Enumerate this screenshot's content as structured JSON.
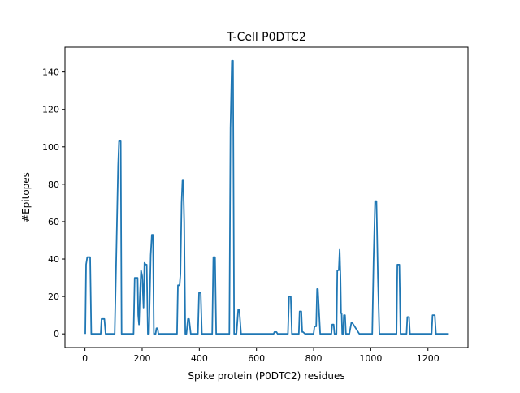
{
  "chart_data": {
    "type": "line",
    "title": "T-Cell P0DTC2",
    "xlabel": "Spike protein (P0DTC2) residues",
    "ylabel": "#Epitopes",
    "xlim": [
      -70,
      1340
    ],
    "ylim": [
      -7.3,
      153.3
    ],
    "xticks": [
      0,
      200,
      400,
      600,
      800,
      1000,
      1200
    ],
    "yticks": [
      0,
      20,
      40,
      60,
      80,
      100,
      120,
      140
    ],
    "grid": false,
    "legend": "none",
    "line_color": "#1f77b4",
    "series": [
      {
        "x": [
          1,
          4,
          8,
          18,
          22,
          55,
          58,
          68,
          72,
          100,
          104,
          116,
          119,
          125,
          128,
          170,
          174,
          184,
          186,
          189,
          192,
          196,
          200,
          205,
          208,
          212,
          216,
          220,
          224,
          230,
          234,
          238,
          241,
          247,
          250,
          254,
          257,
          262,
          266,
          322,
          325,
          331,
          334,
          338,
          341,
          344,
          347,
          351,
          355,
          360,
          364,
          370,
          374,
          395,
          399,
          405,
          409,
          445,
          449,
          455,
          459,
          505,
          509,
          514,
          518,
          522,
          530,
          536,
          540,
          546,
          550,
          660,
          663,
          670,
          674,
          710,
          714,
          720,
          724,
          748,
          751,
          757,
          760,
          763,
          770,
          772,
          800,
          803,
          809,
          812,
          815,
          823,
          826,
          862,
          865,
          870,
          873,
          880,
          883,
          888,
          891,
          894,
          896,
          898,
          900,
          903,
          906,
          910,
          913,
          915,
          918,
          922,
          925,
          932,
          935,
          960,
          963,
          968,
          971,
          1005,
          1010,
          1015,
          1020,
          1025,
          1030,
          1090,
          1093,
          1100,
          1104,
          1125,
          1128,
          1134,
          1137,
          1213,
          1216,
          1224,
          1228,
          1273
        ],
        "y": [
          0,
          37,
          41,
          41,
          0,
          0,
          8,
          8,
          0,
          0,
          0,
          90,
          103,
          103,
          0,
          0,
          30,
          30,
          10,
          5,
          20,
          34,
          31,
          14,
          38,
          37,
          37,
          0,
          0,
          42,
          53,
          53,
          0,
          0,
          3,
          3,
          0,
          0,
          0,
          0,
          26,
          26,
          32,
          70,
          82,
          82,
          60,
          0,
          0,
          8,
          8,
          0,
          0,
          0,
          22,
          22,
          0,
          0,
          41,
          41,
          0,
          0,
          110,
          146,
          146,
          0,
          0,
          13,
          13,
          0,
          0,
          0,
          1,
          1,
          0,
          0,
          20,
          20,
          0,
          0,
          12,
          12,
          1,
          1,
          0,
          0,
          0,
          4,
          4,
          24,
          24,
          0,
          0,
          0,
          5,
          5,
          0,
          0,
          34,
          34,
          45,
          30,
          11,
          11,
          0,
          0,
          10,
          10,
          0,
          0,
          0,
          0,
          0,
          6,
          6,
          0,
          0,
          0,
          0,
          0,
          40,
          71,
          71,
          30,
          0,
          0,
          37,
          37,
          0,
          0,
          9,
          9,
          0,
          0,
          10,
          10,
          0,
          0
        ]
      }
    ]
  }
}
